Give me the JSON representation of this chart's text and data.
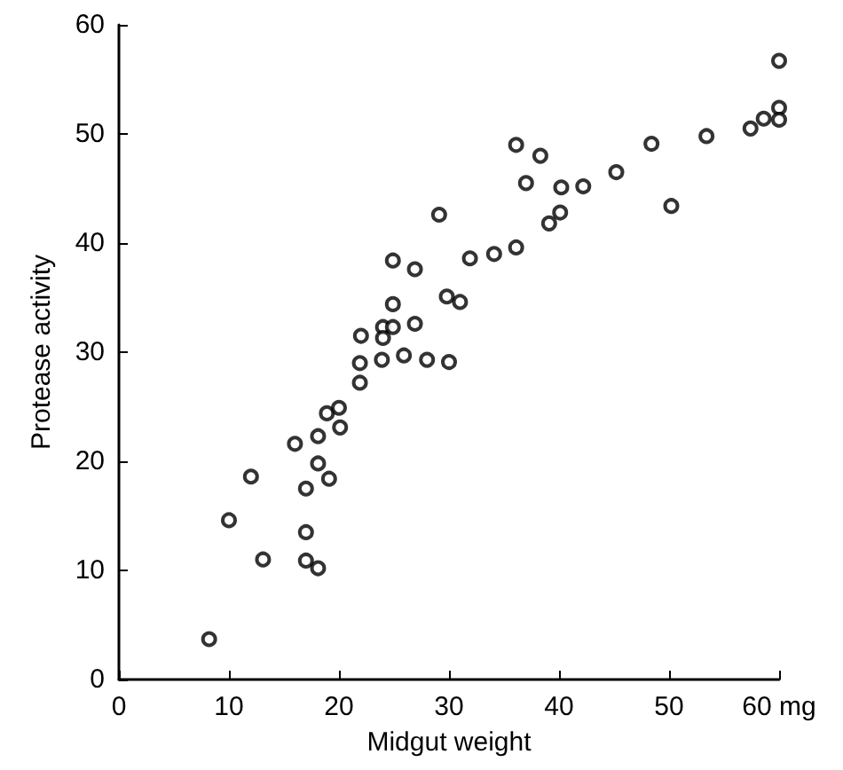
{
  "chart_data": {
    "type": "scatter",
    "xlabel": "Midgut weight",
    "ylabel": "Protease activity",
    "xlim": [
      0,
      60
    ],
    "ylim": [
      0,
      60
    ],
    "xticks": [
      0,
      10,
      20,
      30,
      40,
      50,
      {
        "value": 60,
        "label": "60 mg"
      }
    ],
    "yticks": [
      0,
      10,
      20,
      30,
      40,
      50,
      60
    ],
    "grid": false,
    "marker": "circle",
    "series": [
      {
        "color": "#000000",
        "x": [
          8.2,
          10,
          12,
          13.1,
          17,
          17,
          18.1,
          17,
          19.1,
          18.1,
          16,
          18.1,
          20.1,
          18.9,
          20,
          21.9,
          21.9,
          23.9,
          25.9,
          28,
          30,
          29.1,
          24.9,
          26.9,
          31.9,
          24.9,
          29.8,
          31,
          24,
          24.9,
          24,
          22,
          26.9,
          60,
          60,
          60,
          58.6,
          57.4,
          53.4,
          48.4,
          50.2,
          45.2,
          42.2,
          40.2,
          37,
          36.1,
          38.3,
          40.1,
          39.1,
          36.1,
          34.1
        ],
        "values": [
          3.7,
          14.6,
          18.6,
          11,
          13.5,
          10.9,
          10.2,
          17.5,
          18.4,
          19.8,
          21.6,
          22.3,
          23.1,
          24.4,
          24.9,
          27.2,
          29,
          29.3,
          29.7,
          29.3,
          29.1,
          42.6,
          38.4,
          37.6,
          38.6,
          34.4,
          35.1,
          34.6,
          32.3,
          32.3,
          31.3,
          31.5,
          32.6,
          56.7,
          52.4,
          51.3,
          51.4,
          50.5,
          49.8,
          49.1,
          43.4,
          46.5,
          45.2,
          45.1,
          45.5,
          49,
          48,
          42.8,
          41.8,
          39.6,
          39
        ]
      }
    ]
  }
}
